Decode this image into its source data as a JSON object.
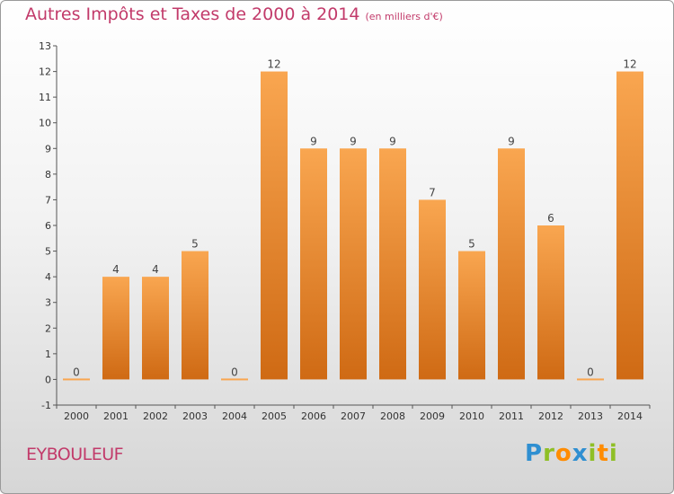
{
  "title": "Autres Impôts et Taxes de 2000 à 2014",
  "unit_note": "(en milliers d'€)",
  "place": "EYBOULEUF",
  "logo": {
    "letters": [
      "P",
      "r",
      "o",
      "x",
      "i",
      "t",
      "i"
    ],
    "colors": [
      "#2f8fd1",
      "#8fbf26",
      "#ff8c00",
      "#2f8fd1",
      "#8fbf26",
      "#ff8c00",
      "#8fbf26"
    ]
  },
  "colors": {
    "title": "#c23a6a",
    "bar_light": "#f9a650",
    "bar_dark": "#cf6a14",
    "axis": "#555555",
    "grid": "#bbbbbb"
  },
  "chart_data": {
    "type": "bar",
    "categories": [
      "2000",
      "2001",
      "2002",
      "2003",
      "2004",
      "2005",
      "2006",
      "2007",
      "2008",
      "2009",
      "2010",
      "2011",
      "2012",
      "2013",
      "2014"
    ],
    "values": [
      0,
      4,
      4,
      5,
      0,
      12,
      9,
      9,
      9,
      7,
      5,
      9,
      6,
      0,
      12
    ],
    "data_labels": [
      "0",
      "4",
      "4",
      "5",
      "0",
      "12",
      "9",
      "9",
      "9",
      "7",
      "5",
      "9",
      "6",
      "0",
      "12"
    ],
    "yticks": [
      "-1",
      "0",
      "1",
      "2",
      "3",
      "4",
      "5",
      "6",
      "7",
      "8",
      "9",
      "10",
      "11",
      "12",
      "13"
    ],
    "ylim": [
      -1,
      13
    ],
    "grid": false,
    "legend": "none"
  }
}
